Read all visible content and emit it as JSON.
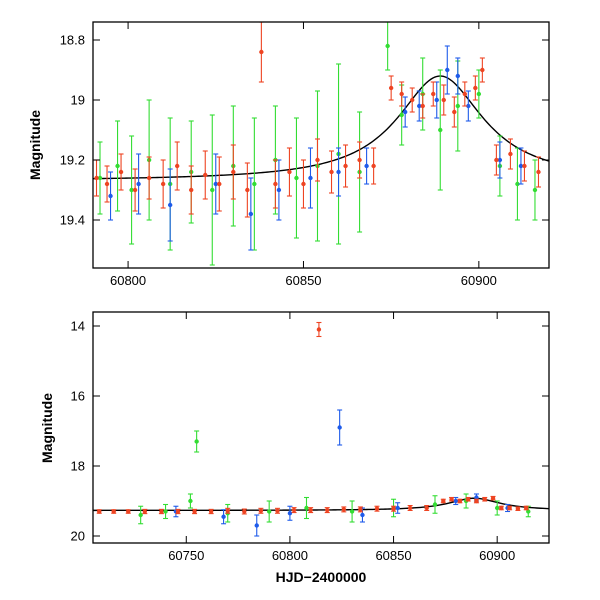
{
  "chart_data": [
    {
      "type": "scatter",
      "title": "",
      "xlabel": "",
      "ylabel": "Magnitude",
      "xlim": [
        60790,
        60920
      ],
      "ylim": [
        19.56,
        18.74
      ],
      "y_inverted": true,
      "x_ticks": [
        60800,
        60850,
        60900
      ],
      "x_tick_labels": [
        "60800",
        "60850",
        "60900"
      ],
      "y_ticks": [
        18.8,
        19.0,
        19.2,
        19.4
      ],
      "y_tick_labels": [
        "18.8",
        "19",
        "19.2",
        "19.4"
      ],
      "grid": false,
      "legend": "none",
      "series": [
        {
          "color": "#33dd33",
          "marker": "point with error bar",
          "points": [
            [
              60792,
              19.26,
              0.12
            ],
            [
              60797,
              19.22,
              0.15
            ],
            [
              60801,
              19.3,
              0.18
            ],
            [
              60806,
              19.2,
              0.2
            ],
            [
              60812,
              19.28,
              0.22
            ],
            [
              60818,
              19.24,
              0.17
            ],
            [
              60824,
              19.3,
              0.25
            ],
            [
              60830,
              19.22,
              0.2
            ],
            [
              60836,
              19.28,
              0.22
            ],
            [
              60842,
              19.2,
              0.18
            ],
            [
              60848,
              19.26,
              0.2
            ],
            [
              60854,
              19.22,
              0.25
            ],
            [
              60860,
              19.18,
              0.3
            ],
            [
              60866,
              19.24,
              0.2
            ],
            [
              60874,
              18.82,
              0.08
            ],
            [
              60878,
              19.05,
              0.1
            ],
            [
              60884,
              18.98,
              0.12
            ],
            [
              60889,
              19.1,
              0.2
            ],
            [
              60894,
              19.02,
              0.15
            ],
            [
              60900,
              18.98,
              0.08
            ],
            [
              60906,
              19.22,
              0.1
            ],
            [
              60911,
              19.28,
              0.12
            ],
            [
              60916,
              19.3,
              0.1
            ]
          ]
        },
        {
          "color": "#1e5bea",
          "marker": "point with error bar",
          "points": [
            [
              60795,
              19.32,
              0.08
            ],
            [
              60803,
              19.28,
              0.1
            ],
            [
              60812,
              19.35,
              0.12
            ],
            [
              60825,
              19.28,
              0.1
            ],
            [
              60835,
              19.38,
              0.12
            ],
            [
              60843,
              19.3,
              0.1
            ],
            [
              60852,
              19.26,
              0.1
            ],
            [
              60860,
              19.24,
              0.08
            ],
            [
              60868,
              19.22,
              0.06
            ],
            [
              60879,
              19.04,
              0.05
            ],
            [
              60883,
              19.02,
              0.05
            ],
            [
              60888,
              19.0,
              0.06
            ],
            [
              60891,
              18.9,
              0.08
            ],
            [
              60894,
              18.92,
              0.06
            ],
            [
              60897,
              19.02,
              0.05
            ],
            [
              60906,
              19.2,
              0.06
            ],
            [
              60912,
              19.22,
              0.06
            ]
          ]
        },
        {
          "color": "#ee4422",
          "marker": "point with error bar",
          "points": [
            [
              60791,
              19.26,
              0.06
            ],
            [
              60794,
              19.28,
              0.06
            ],
            [
              60798,
              19.24,
              0.06
            ],
            [
              60802,
              19.3,
              0.07
            ],
            [
              60806,
              19.26,
              0.07
            ],
            [
              60810,
              19.28,
              0.08
            ],
            [
              60814,
              19.22,
              0.08
            ],
            [
              60818,
              19.3,
              0.08
            ],
            [
              60822,
              19.25,
              0.08
            ],
            [
              60826,
              19.28,
              0.09
            ],
            [
              60830,
              19.24,
              0.09
            ],
            [
              60834,
              19.3,
              0.09
            ],
            [
              60838,
              18.84,
              0.1
            ],
            [
              60842,
              19.28,
              0.08
            ],
            [
              60846,
              19.24,
              0.08
            ],
            [
              60850,
              19.28,
              0.08
            ],
            [
              60854,
              19.2,
              0.07
            ],
            [
              60858,
              19.24,
              0.07
            ],
            [
              60862,
              19.22,
              0.07
            ],
            [
              60866,
              19.2,
              0.06
            ],
            [
              60870,
              19.22,
              0.06
            ],
            [
              60875,
              18.96,
              0.04
            ],
            [
              60878,
              18.98,
              0.04
            ],
            [
              60881,
              19.0,
              0.04
            ],
            [
              60884,
              19.02,
              0.04
            ],
            [
              60887,
              18.98,
              0.04
            ],
            [
              60890,
              19.0,
              0.05
            ],
            [
              60893,
              19.04,
              0.05
            ],
            [
              60896,
              18.98,
              0.04
            ],
            [
              60899,
              18.96,
              0.04
            ],
            [
              60901,
              18.9,
              0.04
            ],
            [
              60905,
              19.2,
              0.05
            ],
            [
              60909,
              19.18,
              0.05
            ],
            [
              60913,
              19.22,
              0.05
            ],
            [
              60917,
              19.24,
              0.05
            ]
          ]
        }
      ],
      "model_curve": {
        "color": "#000000",
        "baseline": 19.27,
        "peak_x": 60889,
        "peak_depth": 0.35,
        "width_days": 15
      }
    },
    {
      "type": "scatter",
      "title": "",
      "xlabel": "HJD−2400000",
      "ylabel": "Magnitude",
      "xlim": [
        60705,
        60925
      ],
      "ylim": [
        20.2,
        13.6
      ],
      "y_inverted": true,
      "x_ticks": [
        60750,
        60800,
        60850,
        60900
      ],
      "x_tick_labels": [
        "60750",
        "60800",
        "60850",
        "60900"
      ],
      "y_ticks": [
        14,
        16,
        18,
        20
      ],
      "y_tick_labels": [
        "14",
        "16",
        "18",
        "20"
      ],
      "grid": false,
      "legend": "none",
      "series": [
        {
          "color": "#33dd33",
          "marker": "point with error bar",
          "points": [
            [
              60728,
              19.4,
              0.25
            ],
            [
              60740,
              19.3,
              0.2
            ],
            [
              60752,
              19.0,
              0.2
            ],
            [
              60755,
              17.3,
              0.3
            ],
            [
              60770,
              19.35,
              0.25
            ],
            [
              60790,
              19.3,
              0.3
            ],
            [
              60808,
              19.2,
              0.3
            ],
            [
              60830,
              19.3,
              0.3
            ],
            [
              60850,
              19.2,
              0.25
            ],
            [
              60870,
              19.1,
              0.25
            ],
            [
              60885,
              19.0,
              0.2
            ],
            [
              60900,
              19.2,
              0.2
            ],
            [
              60915,
              19.3,
              0.15
            ]
          ]
        },
        {
          "color": "#1e5bea",
          "marker": "point with error bar",
          "points": [
            [
              60745,
              19.3,
              0.15
            ],
            [
              60768,
              19.45,
              0.2
            ],
            [
              60784,
              19.7,
              0.3
            ],
            [
              60800,
              19.35,
              0.2
            ],
            [
              60824,
              16.9,
              0.5
            ],
            [
              60835,
              19.4,
              0.2
            ],
            [
              60852,
              19.2,
              0.15
            ],
            [
              60880,
              19.0,
              0.1
            ],
            [
              60890,
              18.9,
              0.1
            ],
            [
              60905,
              19.2,
              0.1
            ]
          ]
        },
        {
          "color": "#ee4422",
          "marker": "point with error bar",
          "points": [
            [
              60708,
              19.3,
              0.05
            ],
            [
              60715,
              19.3,
              0.05
            ],
            [
              60722,
              19.3,
              0.05
            ],
            [
              60730,
              19.3,
              0.06
            ],
            [
              60738,
              19.3,
              0.06
            ],
            [
              60746,
              19.3,
              0.06
            ],
            [
              60754,
              19.3,
              0.06
            ],
            [
              60762,
              19.3,
              0.06
            ],
            [
              60770,
              19.28,
              0.07
            ],
            [
              60778,
              19.3,
              0.07
            ],
            [
              60786,
              19.28,
              0.07
            ],
            [
              60794,
              19.28,
              0.07
            ],
            [
              60802,
              19.26,
              0.07
            ],
            [
              60810,
              19.26,
              0.07
            ],
            [
              60814,
              14.1,
              0.2
            ],
            [
              60818,
              19.26,
              0.07
            ],
            [
              60826,
              19.24,
              0.07
            ],
            [
              60834,
              19.24,
              0.07
            ],
            [
              60842,
              19.22,
              0.07
            ],
            [
              60850,
              19.22,
              0.07
            ],
            [
              60858,
              19.2,
              0.07
            ],
            [
              60866,
              19.2,
              0.07
            ],
            [
              60874,
              19.0,
              0.05
            ],
            [
              60878,
              18.95,
              0.05
            ],
            [
              60882,
              19.0,
              0.05
            ],
            [
              60886,
              18.95,
              0.05
            ],
            [
              60890,
              19.0,
              0.05
            ],
            [
              60894,
              18.95,
              0.05
            ],
            [
              60898,
              18.92,
              0.05
            ],
            [
              60902,
              19.2,
              0.05
            ],
            [
              60906,
              19.2,
              0.05
            ],
            [
              60910,
              19.22,
              0.05
            ],
            [
              60914,
              19.2,
              0.05
            ]
          ]
        }
      ],
      "model_curve": {
        "color": "#000000",
        "baseline": 19.27,
        "peak_x": 60889,
        "peak_depth": 0.35,
        "width_days": 15
      }
    }
  ]
}
